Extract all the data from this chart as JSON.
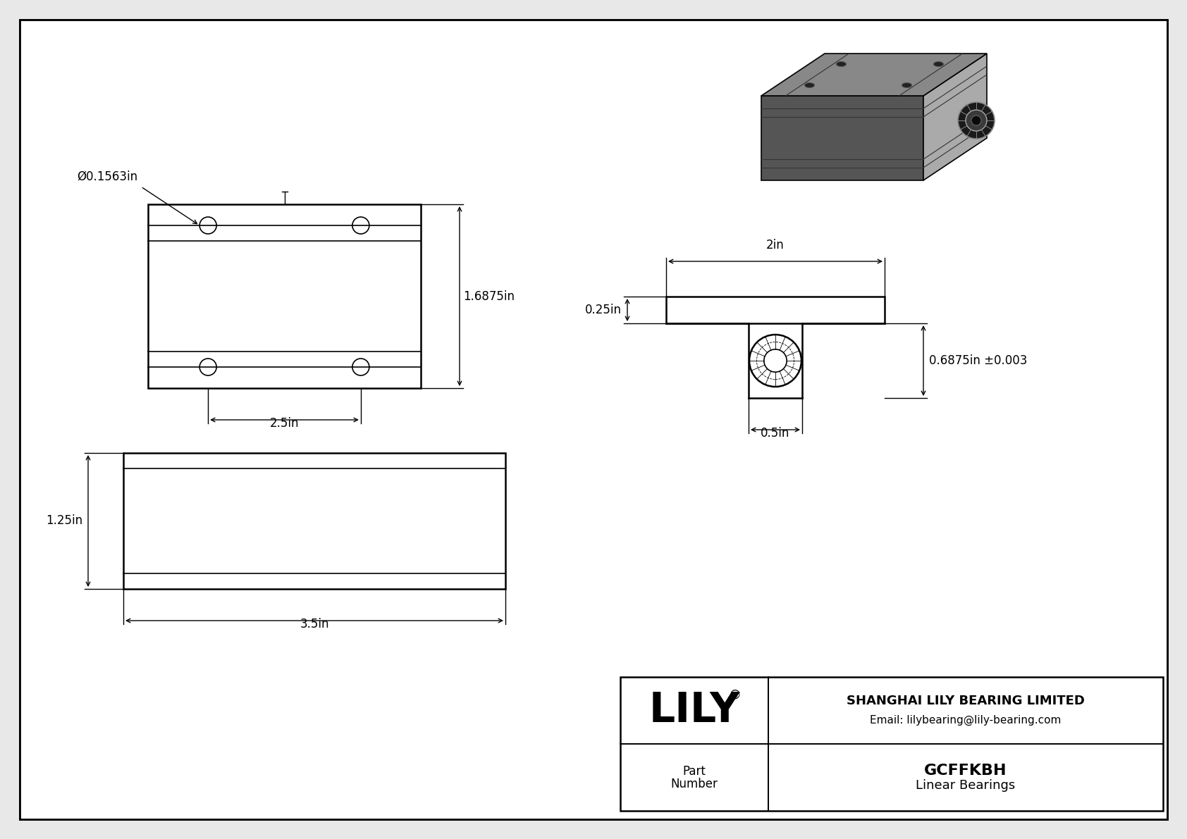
{
  "bg_color": "#e8e8e8",
  "drawing_bg": "#ffffff",
  "line_color": "#000000",
  "company": "SHANGHAI LILY BEARING LIMITED",
  "email": "Email: lilybearing@lily-bearing.com",
  "part_number": "GCFFKBH",
  "part_type": "Linear Bearings",
  "lily_text": "LILY",
  "face_top": "#888888",
  "face_front": "#555555",
  "face_right": "#aaaaaa",
  "face_top_light": "#999999",
  "face_front_light": "#666666",
  "face_right_light": "#bbbbbb"
}
